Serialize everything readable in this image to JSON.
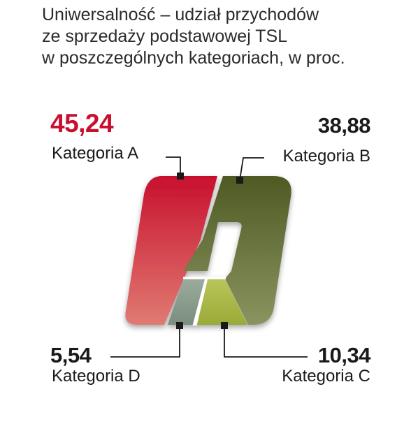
{
  "title_lines": [
    "Uniwersalność – udział przychodów",
    "ze sprzedaży podstawowej TSL",
    "w poszczególnych kategoriach, w proc."
  ],
  "chart_data": {
    "type": "pie",
    "title": "Uniwersalność – udział przychodów ze sprzedaży podstawowej TSL w poszczególnych kategoriach, w proc.",
    "categories": [
      "Kategoria A",
      "Kategoria B",
      "Kategoria C",
      "Kategoria D"
    ],
    "values": [
      45.24,
      38.88,
      10.34,
      5.54
    ],
    "value_labels": [
      "45,24",
      "38,88",
      "10,34",
      "5,54"
    ],
    "colors": [
      "#c8263d",
      "#5a6530",
      "#a9b84a",
      "#8a9c8c"
    ],
    "accent_color": "#c8102e"
  }
}
